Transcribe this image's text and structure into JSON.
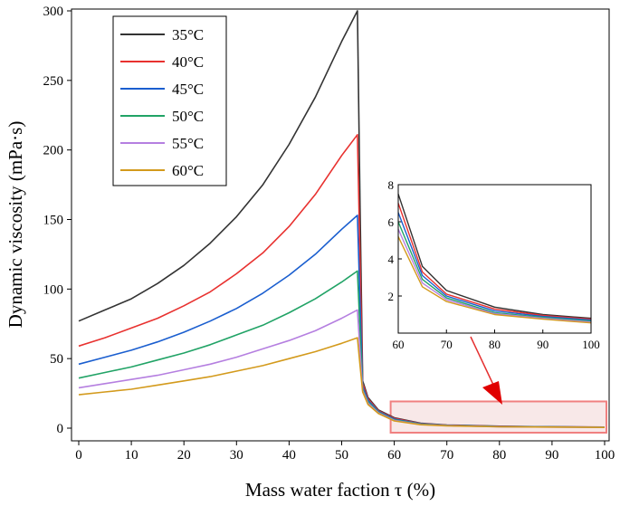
{
  "chart_data": {
    "type": "line",
    "xlabel": "Mass water faction τ (%)",
    "ylabel": "Dynamic viscosity (mPa·s)",
    "xlim": [
      0,
      100
    ],
    "ylim": [
      0,
      300
    ],
    "xticks": [
      0,
      10,
      20,
      30,
      40,
      50,
      60,
      70,
      80,
      90,
      100
    ],
    "yticks": [
      0,
      50,
      100,
      150,
      200,
      250,
      300
    ],
    "legend_position": "top-left",
    "series": [
      {
        "name": "35°C",
        "color": "#333333",
        "x": [
          0,
          5,
          10,
          15,
          20,
          25,
          30,
          35,
          40,
          45,
          50,
          53,
          53.5,
          54,
          55,
          57,
          60,
          65,
          70,
          80,
          90,
          100
        ],
        "values": [
          77,
          85,
          93,
          104,
          117,
          133,
          152,
          175,
          204,
          238,
          278,
          300,
          160,
          34,
          22,
          13,
          7.5,
          3.6,
          2.3,
          1.4,
          1.0,
          0.8
        ]
      },
      {
        "name": "40°C",
        "color": "#e8312f",
        "x": [
          0,
          5,
          10,
          15,
          20,
          25,
          30,
          35,
          40,
          45,
          50,
          53,
          53.5,
          54,
          55,
          57,
          60,
          65,
          70,
          80,
          90,
          100
        ],
        "values": [
          59,
          65,
          72,
          79,
          88,
          98,
          111,
          126,
          145,
          168,
          196,
          211,
          120,
          32,
          21,
          12.5,
          7.0,
          3.3,
          2.1,
          1.3,
          0.95,
          0.75
        ]
      },
      {
        "name": "45°C",
        "color": "#1a5ecf",
        "x": [
          0,
          5,
          10,
          15,
          20,
          25,
          30,
          35,
          40,
          45,
          50,
          53,
          53.5,
          54,
          55,
          57,
          60,
          65,
          70,
          80,
          90,
          100
        ],
        "values": [
          46,
          51,
          56,
          62,
          69,
          77,
          86,
          97,
          110,
          125,
          143,
          153,
          90,
          30,
          20,
          12,
          6.5,
          3.1,
          2.0,
          1.2,
          0.9,
          0.7
        ]
      },
      {
        "name": "50°C",
        "color": "#21a366",
        "x": [
          0,
          5,
          10,
          15,
          20,
          25,
          30,
          35,
          40,
          45,
          50,
          53,
          53.5,
          54,
          55,
          57,
          60,
          65,
          70,
          80,
          90,
          100
        ],
        "values": [
          36,
          40,
          44,
          49,
          54,
          60,
          67,
          74,
          83,
          93,
          105,
          113,
          70,
          28,
          19,
          11.5,
          6.0,
          2.9,
          1.9,
          1.1,
          0.85,
          0.65
        ]
      },
      {
        "name": "55°C",
        "color": "#b57fe0",
        "x": [
          0,
          5,
          10,
          15,
          20,
          25,
          30,
          35,
          40,
          45,
          50,
          53,
          53.5,
          54,
          55,
          57,
          60,
          65,
          70,
          80,
          90,
          100
        ],
        "values": [
          29,
          32,
          35,
          38,
          42,
          46,
          51,
          57,
          63,
          70,
          79,
          85,
          55,
          27,
          18,
          11,
          5.6,
          2.7,
          1.8,
          1.05,
          0.8,
          0.6
        ]
      },
      {
        "name": "60°C",
        "color": "#d39a1c",
        "x": [
          0,
          5,
          10,
          15,
          20,
          25,
          30,
          35,
          40,
          45,
          50,
          53,
          53.5,
          54,
          55,
          57,
          60,
          65,
          70,
          80,
          90,
          100
        ],
        "values": [
          24,
          26,
          28,
          31,
          34,
          37,
          41,
          45,
          50,
          55,
          61,
          65,
          45,
          26,
          17,
          10.5,
          5.2,
          2.5,
          1.7,
          1.0,
          0.75,
          0.55
        ]
      }
    ],
    "inset": {
      "xlim": [
        60,
        100
      ],
      "ylim": [
        0,
        8
      ],
      "xticks": [
        60,
        70,
        80,
        90,
        100
      ],
      "yticks": [
        2,
        4,
        6,
        8
      ],
      "zoom_range_x": [
        60,
        100
      ],
      "zoom_range_y": [
        0,
        14
      ]
    }
  }
}
